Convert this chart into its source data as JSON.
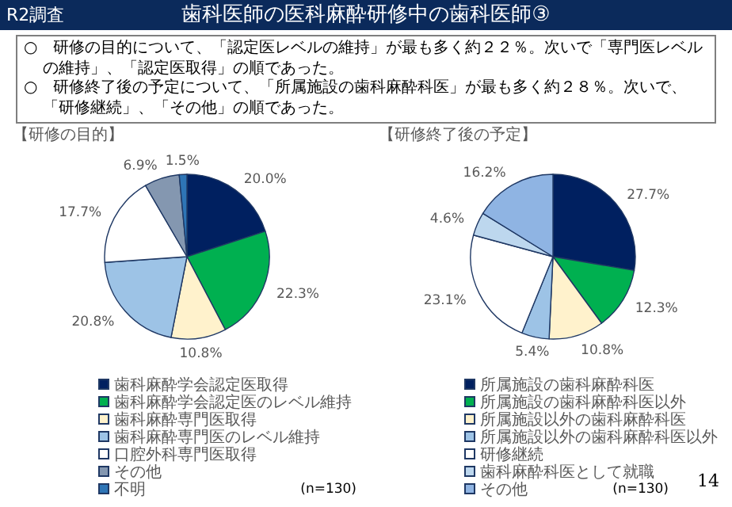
{
  "chart_data": [
    {
      "type": "other",
      "title": "歯科医師の医科麻酔研修中の歯科医師③",
      "annotations": [
        "R2調査",
        "○　研修の目的について、「認定医レベルの維持」が最も多く約２２％。次いで「専門医レベルの維持」、「認定医取得」の順であった。",
        "○　研修終了後の予定について、「所属施設の歯科麻酔科医」が最も多く約２８％。次いで、「研修継続」、「その他」の順であった。",
        "14"
      ]
    },
    {
      "type": "pie",
      "title": "【研修の目的】",
      "legend": "bottom",
      "annotations": [
        "(n=130)"
      ],
      "categories": [
        "歯科麻酔学会認定医取得",
        "歯科麻酔学会認定医のレベル維持",
        "歯科麻酔専門医取得",
        "歯科麻酔専門医のレベル維持",
        "口腔外科専門医取得",
        "その他",
        "不明"
      ],
      "values": [
        20.0,
        22.3,
        10.8,
        20.8,
        17.7,
        6.9,
        1.5
      ],
      "value_labels": [
        "20.0%",
        "22.3%",
        "10.8%",
        "20.8%",
        "17.7%",
        "6.9%",
        "1.5%"
      ],
      "colors": [
        "#002060",
        "#00b050",
        "#fff2cc",
        "#9dc3e6",
        "#ffffff",
        "#8497b0",
        "#2e75b6"
      ]
    },
    {
      "type": "pie",
      "title": "【研修終了後の予定】",
      "legend": "bottom",
      "annotations": [
        "(n=130)"
      ],
      "categories": [
        "所属施設の歯科麻酔科医",
        "所属施設の歯科麻酔科医以外",
        "所属施設以外の歯科麻酔科医",
        "所属施設以外の歯科麻酔科医以外",
        "研修継続",
        "歯科麻酔科医として就職",
        "その他"
      ],
      "values": [
        27.7,
        12.3,
        10.8,
        5.4,
        23.1,
        4.6,
        16.2
      ],
      "value_labels": [
        "27.7%",
        "12.3%",
        "10.8%",
        "5.4%",
        "23.1%",
        "4.6%",
        "16.2%"
      ],
      "colors": [
        "#002060",
        "#00b050",
        "#fff2cc",
        "#9dc3e6",
        "#ffffff",
        "#bdd7ee",
        "#8fb4e3"
      ]
    }
  ]
}
